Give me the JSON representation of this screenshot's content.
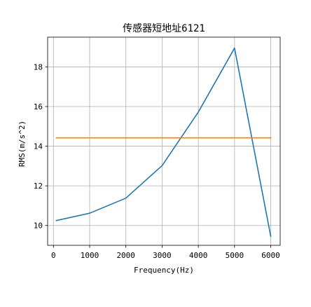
{
  "chart_data": {
    "type": "line",
    "title": "传感器短地址6121",
    "xlabel": "Frequency(Hz)",
    "ylabel": "RMS(m/s^2)",
    "xlim": [
      -160,
      6260
    ],
    "ylim": [
      9.0,
      19.5
    ],
    "xticks": [
      0,
      1000,
      2000,
      3000,
      4000,
      5000,
      6000
    ],
    "yticks": [
      10,
      12,
      14,
      16,
      18
    ],
    "grid": true,
    "series": [
      {
        "color": "#1f77b4",
        "x": [
          80,
          1000,
          2000,
          3000,
          4000,
          5000,
          6000
        ],
        "y": [
          10.25,
          10.62,
          11.38,
          13.02,
          15.72,
          18.95,
          9.45
        ]
      },
      {
        "color": "#ff7f0e",
        "x": [
          80,
          6000
        ],
        "y": [
          14.42,
          14.42
        ]
      }
    ]
  }
}
